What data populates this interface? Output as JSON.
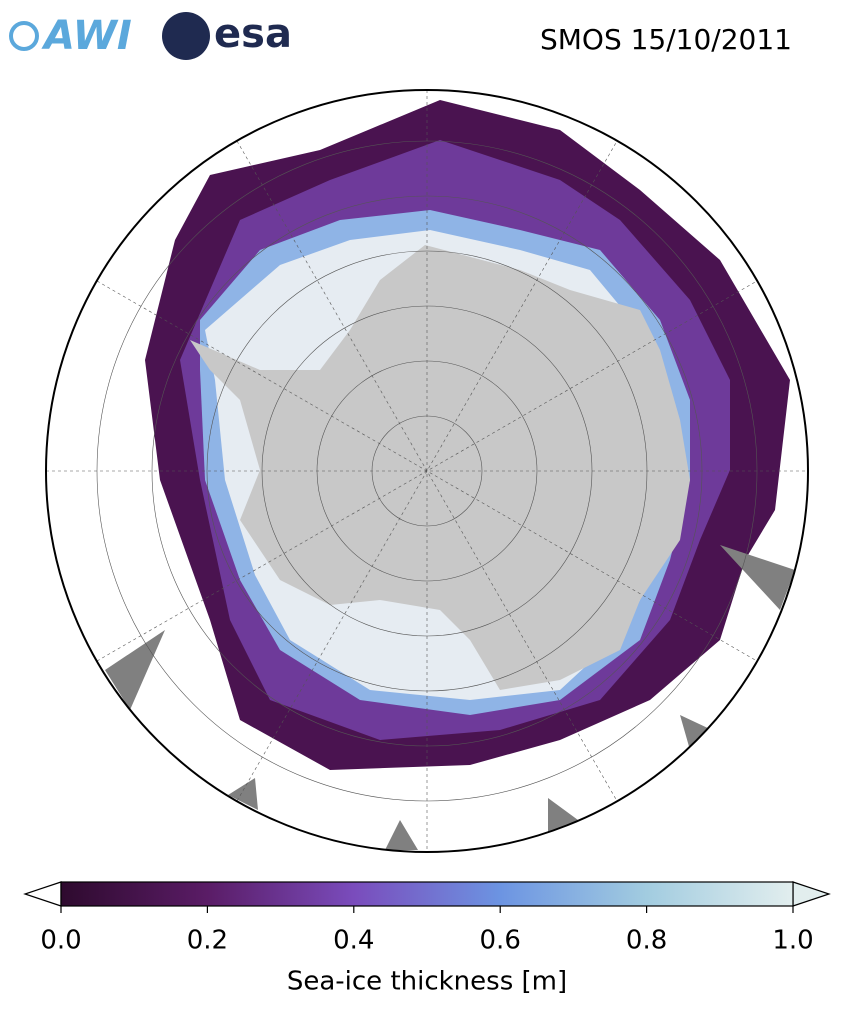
{
  "header": {
    "logos": [
      "AWI",
      "esa"
    ],
    "title": "SMOS 15/10/2011"
  },
  "colorbar": {
    "label": "Sea-ice thickness [m]",
    "range": [
      0,
      1
    ],
    "ticks": [
      {
        "value": 0,
        "label": "0.0"
      },
      0.2,
      0.4,
      0.6,
      0.8,
      {
        "value": 1,
        "label": "1.0"
      }
    ],
    "colormap": [
      "#2e0a2e",
      "#5a1c66",
      "#7a4cbc",
      "#6c94e2",
      "#a2cce0",
      "#e2eeee"
    ]
  }
}
